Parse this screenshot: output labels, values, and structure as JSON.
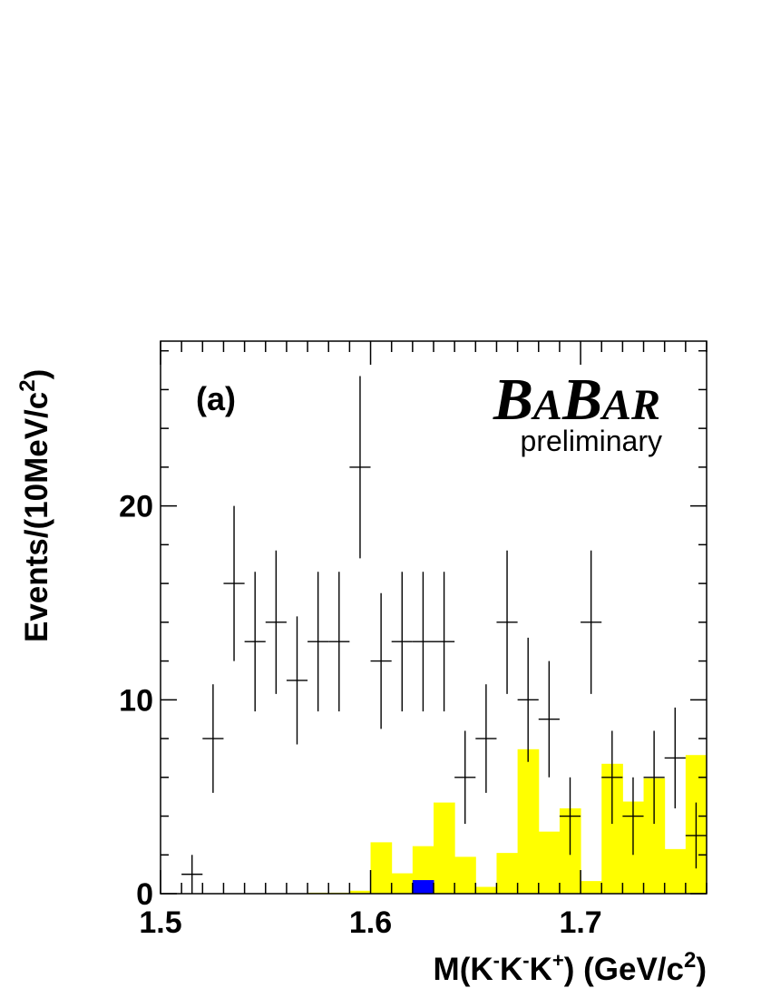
{
  "chart_data": {
    "type": "histogram",
    "panel_label": "(a)",
    "logo": {
      "text": "BABAR"
    },
    "annotation": "preliminary",
    "xlabel": "M(K-K-K+) (GeV/c2)",
    "ylabel": "Events/(10MeV/c2)",
    "xlim": [
      1.5,
      1.76
    ],
    "ylim": [
      0,
      28.5
    ],
    "x_ticks": [
      {
        "value": 1.5,
        "label": "1.5"
      },
      {
        "value": 1.6,
        "label": "1.6"
      },
      {
        "value": 1.7,
        "label": "1.7"
      }
    ],
    "y_ticks": [
      {
        "value": 0,
        "label": "0"
      },
      {
        "value": 10,
        "label": "10"
      },
      {
        "value": 20,
        "label": "20"
      }
    ],
    "bin_width": 0.01,
    "data_points": {
      "name": "data",
      "x": [
        1.515,
        1.525,
        1.535,
        1.545,
        1.555,
        1.565,
        1.575,
        1.585,
        1.595,
        1.605,
        1.615,
        1.625,
        1.635,
        1.645,
        1.655,
        1.665,
        1.675,
        1.685,
        1.695,
        1.705,
        1.715,
        1.725,
        1.735,
        1.745,
        1.755
      ],
      "y": [
        1,
        8,
        16,
        13,
        14,
        11,
        13,
        13,
        22,
        12,
        13,
        13,
        13,
        6,
        8,
        14,
        10,
        9,
        4,
        14,
        6,
        4,
        6,
        7,
        3
      ],
      "yerr": [
        1.0,
        2.8,
        4.0,
        3.6,
        3.7,
        3.3,
        3.6,
        3.6,
        4.7,
        3.5,
        3.6,
        3.6,
        3.6,
        2.4,
        2.8,
        3.7,
        3.2,
        3.0,
        2.0,
        3.7,
        2.4,
        2.0,
        2.4,
        2.6,
        1.7
      ],
      "color": "#000000"
    },
    "background_yellow": {
      "name": "background",
      "color": "#ffff00",
      "bin_edges": [
        1.57,
        1.58,
        1.59,
        1.6,
        1.61,
        1.62,
        1.63,
        1.64,
        1.65,
        1.66,
        1.67,
        1.68,
        1.69,
        1.7,
        1.71,
        1.72,
        1.73,
        1.74,
        1.75,
        1.76
      ],
      "values": [
        0.05,
        0.05,
        0.15,
        2.65,
        1.05,
        2.45,
        4.7,
        1.9,
        0.35,
        2.1,
        7.45,
        3.2,
        4.4,
        0.65,
        6.7,
        4.75,
        5.95,
        2.3,
        7.15
      ]
    },
    "background_blue": {
      "name": "peaking background",
      "color": "#0000ff",
      "bin_edges": [
        1.62,
        1.63
      ],
      "values": [
        0.7
      ]
    }
  }
}
